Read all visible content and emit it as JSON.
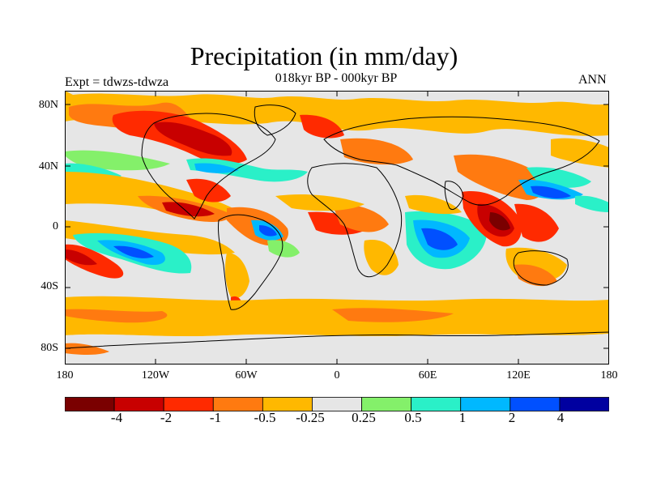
{
  "title": "Precipitation (in mm/day)",
  "subtitle": "018kyr BP - 000kyr BP",
  "left_label": "Expt = tdwzs-tdwza",
  "right_label": "ANN",
  "lat_ticks": [
    "80N",
    "40N",
    "0",
    "40S",
    "80S"
  ],
  "lon_ticks": [
    "180",
    "120W",
    "60W",
    "0",
    "60E",
    "120E",
    "180"
  ],
  "colorbar": {
    "colors": [
      "#7a0000",
      "#c80000",
      "#ff2a00",
      "#ff7a10",
      "#ffb800",
      "#e6e6e6",
      "#84f06a",
      "#2af0c8",
      "#00b8ff",
      "#0050ff",
      "#0000a0"
    ],
    "labels": [
      "-4",
      "-2",
      "-1",
      "-0.5",
      "-0.25",
      "0.25",
      "0.5",
      "1",
      "2",
      "4"
    ]
  }
}
